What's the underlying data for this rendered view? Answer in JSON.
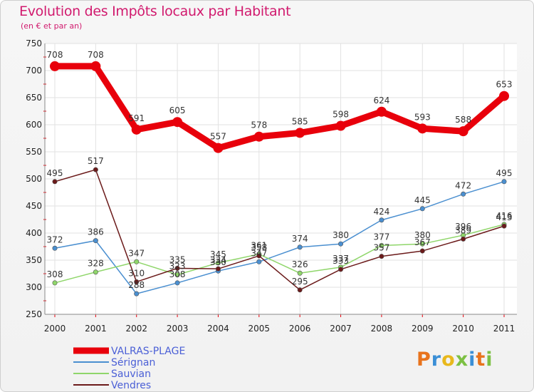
{
  "title": "Evolution des Impôts locaux par Habitant",
  "subtitle": "(en € et par an)",
  "logo": {
    "letters": [
      "P",
      "r",
      "o",
      "x",
      "i",
      "t",
      "i"
    ]
  },
  "chart_data": {
    "type": "line",
    "title": "Evolution des Impôts locaux par Habitant",
    "ylabel": "(en € et par an)",
    "xlabel": "",
    "ylim": [
      250,
      750
    ],
    "yticks": [
      "250",
      "300",
      "350",
      "400",
      "450",
      "500",
      "550",
      "600",
      "650",
      "700",
      "750"
    ],
    "categories": [
      "2000",
      "2001",
      "2002",
      "2003",
      "2004",
      "2005",
      "2006",
      "2007",
      "2008",
      "2009",
      "2010",
      "2011"
    ],
    "legend_position": "bottom-left",
    "series": [
      {
        "name": "VALRAS-PLAGE",
        "color": "#e8000b",
        "emphasis": true,
        "values": [
          708,
          708,
          591,
          605,
          557,
          578,
          585,
          598,
          624,
          593,
          588,
          653
        ]
      },
      {
        "name": "Sérignan",
        "color": "#4a8fd0",
        "values": [
          372,
          386,
          288,
          308,
          330,
          347,
          374,
          380,
          424,
          445,
          472,
          495
        ]
      },
      {
        "name": "Sauvian",
        "color": "#8fd66a",
        "values": [
          308,
          328,
          347,
          323,
          345,
          361,
          326,
          337,
          377,
          380,
          396,
          416
        ]
      },
      {
        "name": "Vendres",
        "color": "#6b1a1a",
        "values": [
          495,
          517,
          310,
          335,
          334,
          358,
          295,
          333,
          357,
          367,
          389,
          413
        ]
      }
    ]
  }
}
